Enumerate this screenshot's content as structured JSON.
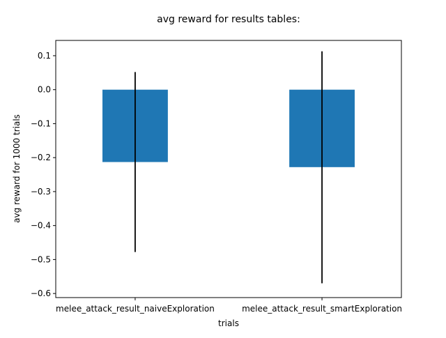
{
  "chart_data": {
    "type": "bar",
    "title": "avg reward for results tables:",
    "xlabel": "trials",
    "ylabel": "avg reward for 1000 trials",
    "categories": [
      "melee_attack_result_naiveExploration",
      "melee_attack_result_smartExploration"
    ],
    "values": [
      -0.213,
      -0.228
    ],
    "error_low": [
      -0.478,
      -0.57
    ],
    "error_high": [
      0.052,
      0.113
    ],
    "ylim": [
      -0.612,
      0.145
    ],
    "yticks": [
      0.1,
      0.0,
      -0.1,
      -0.2,
      -0.3,
      -0.4,
      -0.5,
      -0.6
    ],
    "ytick_labels": [
      "0.1",
      "0.0",
      "−0.1",
      "−0.2",
      "−0.3",
      "−0.4",
      "−0.5",
      "−0.6"
    ],
    "grid": false,
    "legend": "none"
  },
  "colors": {
    "bar": "#1f77b4",
    "error_bar": "#000000",
    "axes": "#000000",
    "background": "#ffffff"
  }
}
